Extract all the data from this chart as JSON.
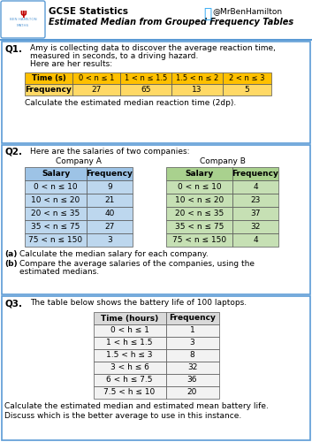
{
  "title_main": "GCSE Statistics",
  "title_sub": "Estimated Median from Grouped Frequency Tables",
  "twitter": "@MrBenHamilton",
  "bg_color": "#ffffff",
  "border_color": "#5b9bd5",
  "q1": {
    "label": "Q1.",
    "text_line1": "Amy is collecting data to discover the average reaction time,",
    "text_line2": "measured in seconds, to a driving hazard.",
    "text_line3": "Here are her results:",
    "table_header": [
      "Time (s)",
      "0 < n ≤ 1",
      "1 < n ≤ 1.5",
      "1.5 < n ≤ 2",
      "2 < n ≤ 3"
    ],
    "table_data": [
      "Frequency",
      "27",
      "65",
      "13",
      "5"
    ],
    "header_color": "#ffc000",
    "data_color": "#ffd966",
    "footer": "Calculate the estimated median reaction time (2dp)."
  },
  "q2": {
    "label": "Q2.",
    "text1": "Here are the salaries of two companies:",
    "company_a": "Company A",
    "company_b": "Company B",
    "header_a": [
      "Salary",
      "Frequency"
    ],
    "data_a": [
      [
        "0 < n ≤ 10",
        "9"
      ],
      [
        "10 < n ≤ 20",
        "21"
      ],
      [
        "20 < n ≤ 35",
        "40"
      ],
      [
        "35 < n ≤ 75",
        "27"
      ],
      [
        "75 < n ≤ 150",
        "3"
      ]
    ],
    "header_b": [
      "Salary",
      "Frequency"
    ],
    "data_b": [
      [
        "0 < n ≤ 10",
        "4"
      ],
      [
        "10 < n ≤ 20",
        "23"
      ],
      [
        "20 < n ≤ 35",
        "37"
      ],
      [
        "35 < n ≤ 75",
        "32"
      ],
      [
        "75 < n ≤ 150",
        "4"
      ]
    ],
    "color_a_header": "#9dc3e6",
    "color_a_data": "#bdd7ee",
    "color_b_header": "#a9d18e",
    "color_b_data": "#c6e0b4",
    "footer_a": "(a)",
    "footer_a_text": "Calculate the median salary for each company.",
    "footer_b": "(b)",
    "footer_b_text1": "Compare the average salaries of the companies, using the",
    "footer_b_text2": "estimated medians."
  },
  "q3": {
    "label": "Q3.",
    "text": "The table below shows the battery life of 100 laptops.",
    "header": [
      "Time (hours)",
      "Frequency"
    ],
    "data": [
      [
        "0 < h ≤ 1",
        "1"
      ],
      [
        "1 < h ≤ 1.5",
        "3"
      ],
      [
        "1.5 < h ≤ 3",
        "8"
      ],
      [
        "3 < h ≤ 6",
        "32"
      ],
      [
        "6 < h ≤ 7.5",
        "36"
      ],
      [
        "7.5 < h ≤ 10",
        "20"
      ]
    ],
    "header_color": "#d9d9d9",
    "data_color": "#f2f2f2",
    "footer1": "Calculate the estimated median and estimated mean battery life.",
    "footer2": "Discuss which is the better average to use in this instance."
  }
}
